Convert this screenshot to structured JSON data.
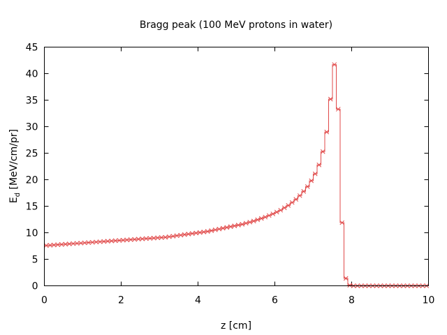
{
  "chart_data": {
    "type": "line",
    "title": "Bragg peak (100 MeV protons in water)",
    "xlabel": "z [cm]",
    "ylabel_main": "E",
    "ylabel_sub": "d",
    "ylabel_rest": " [MeV/cm/pr]",
    "xlim": [
      0,
      10
    ],
    "ylim": [
      0,
      45
    ],
    "xticks": [
      0,
      2,
      4,
      6,
      8,
      10
    ],
    "yticks": [
      0,
      5,
      10,
      15,
      20,
      25,
      30,
      35,
      40,
      45
    ],
    "grid": false,
    "legend": "none",
    "line_style": "steps",
    "marker": "x",
    "series_color": "#e04848",
    "series": [
      {
        "x": [
          0.05,
          0.15,
          0.25,
          0.35,
          0.45,
          0.55,
          0.65,
          0.75,
          0.85,
          0.95,
          1.05,
          1.15,
          1.25,
          1.35,
          1.45,
          1.55,
          1.65,
          1.75,
          1.85,
          1.95,
          2.05,
          2.15,
          2.25,
          2.35,
          2.45,
          2.55,
          2.65,
          2.75,
          2.85,
          2.95,
          3.05,
          3.15,
          3.25,
          3.35,
          3.45,
          3.55,
          3.65,
          3.75,
          3.85,
          3.95,
          4.05,
          4.15,
          4.25,
          4.35,
          4.45,
          4.55,
          4.65,
          4.75,
          4.85,
          4.95,
          5.05,
          5.15,
          5.25,
          5.35,
          5.45,
          5.55,
          5.65,
          5.75,
          5.85,
          5.95,
          6.05,
          6.15,
          6.25,
          6.35,
          6.45,
          6.55,
          6.65,
          6.75,
          6.85,
          6.95,
          7.05,
          7.15,
          7.25,
          7.35,
          7.45,
          7.55,
          7.65,
          7.75,
          7.85,
          7.95,
          8.05,
          8.15,
          8.25,
          8.35,
          8.45,
          8.55,
          8.65,
          8.75,
          8.85,
          8.95,
          9.05,
          9.15,
          9.25,
          9.35,
          9.45,
          9.55,
          9.65,
          9.75,
          9.85,
          9.95
        ],
        "y": [
          7.6,
          7.65,
          7.7,
          7.75,
          7.8,
          7.85,
          7.9,
          7.95,
          8.0,
          8.05,
          8.1,
          8.15,
          8.2,
          8.25,
          8.3,
          8.35,
          8.4,
          8.45,
          8.5,
          8.55,
          8.6,
          8.65,
          8.7,
          8.75,
          8.8,
          8.85,
          8.9,
          8.95,
          9.0,
          9.05,
          9.1,
          9.15,
          9.25,
          9.35,
          9.45,
          9.55,
          9.65,
          9.75,
          9.85,
          9.95,
          10.05,
          10.15,
          10.25,
          10.4,
          10.55,
          10.7,
          10.85,
          11.0,
          11.15,
          11.3,
          11.45,
          11.6,
          11.8,
          12.0,
          12.2,
          12.45,
          12.7,
          12.95,
          13.25,
          13.55,
          13.9,
          14.25,
          14.7,
          15.15,
          15.7,
          16.3,
          17.0,
          17.8,
          18.7,
          19.8,
          21.1,
          22.8,
          25.3,
          29.0,
          35.2,
          41.7,
          33.3,
          11.9,
          1.4,
          0.1,
          0.0,
          0.0,
          0.0,
          0.0,
          0.0,
          0.0,
          0.0,
          0.0,
          0.0,
          0.0,
          0.0,
          0.0,
          0.0,
          0.0,
          0.0,
          0.0,
          0.0,
          0.0,
          0.0,
          0.0
        ]
      }
    ]
  }
}
